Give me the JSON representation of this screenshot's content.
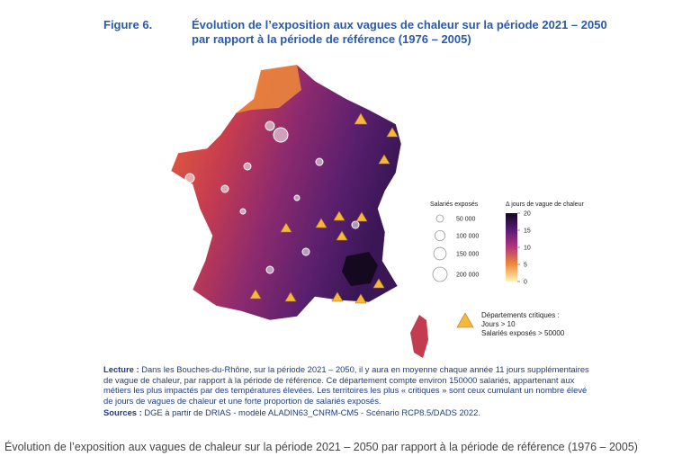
{
  "figure": {
    "label": "Figure 6.",
    "title_lines": [
      "Évolution de l’exposition aux vagues de chaleur sur la période 2021 – 2050",
      "par rapport à la période de référence (1976 – 2005)"
    ]
  },
  "legend": {
    "size_title": "Salariés exposés",
    "sizes": [
      {
        "value": 50000,
        "label": "50 000"
      },
      {
        "value": 100000,
        "label": "100 000"
      },
      {
        "value": 150000,
        "label": "150 000"
      },
      {
        "value": 200000,
        "label": "200 000"
      }
    ],
    "color_title": "Δ jours de vague de chaleur",
    "color_range": [
      0,
      20
    ],
    "color_ticks": [
      20,
      15,
      10,
      5,
      0
    ],
    "critical_title": "Départements critiques :",
    "critical_lines": [
      "Jours > 10",
      "Salariés exposés > 50000"
    ]
  },
  "notes": {
    "lecture_label": "Lecture :",
    "lecture_text": "Dans les Bouches-du-Rhône, sur la période 2021 – 2050, il y aura en moyenne chaque année 11 jours supplémentaires de vague de chaleur, par rapport à la période de référence. Ce département compte environ 150000 salariés, appartenant aux métiers les plus impactés par des températures élevées. Les territoires les plus « critiques » sont ceux cumulant un nombre élevé de jours de vagues de chaleur et une forte proportion de salariés exposés.",
    "sources_label": "Sources :",
    "sources_text": "DGE à partir de DRIAS - modèle ALADIN63_CNRM-CM5 - Scénario RCP8.5/DADS 2022."
  },
  "caption": "Évolution de l’exposition aux vagues de chaleur sur la période 2021 – 2050 par rapport à la période de référence (1976 – 2005)"
}
